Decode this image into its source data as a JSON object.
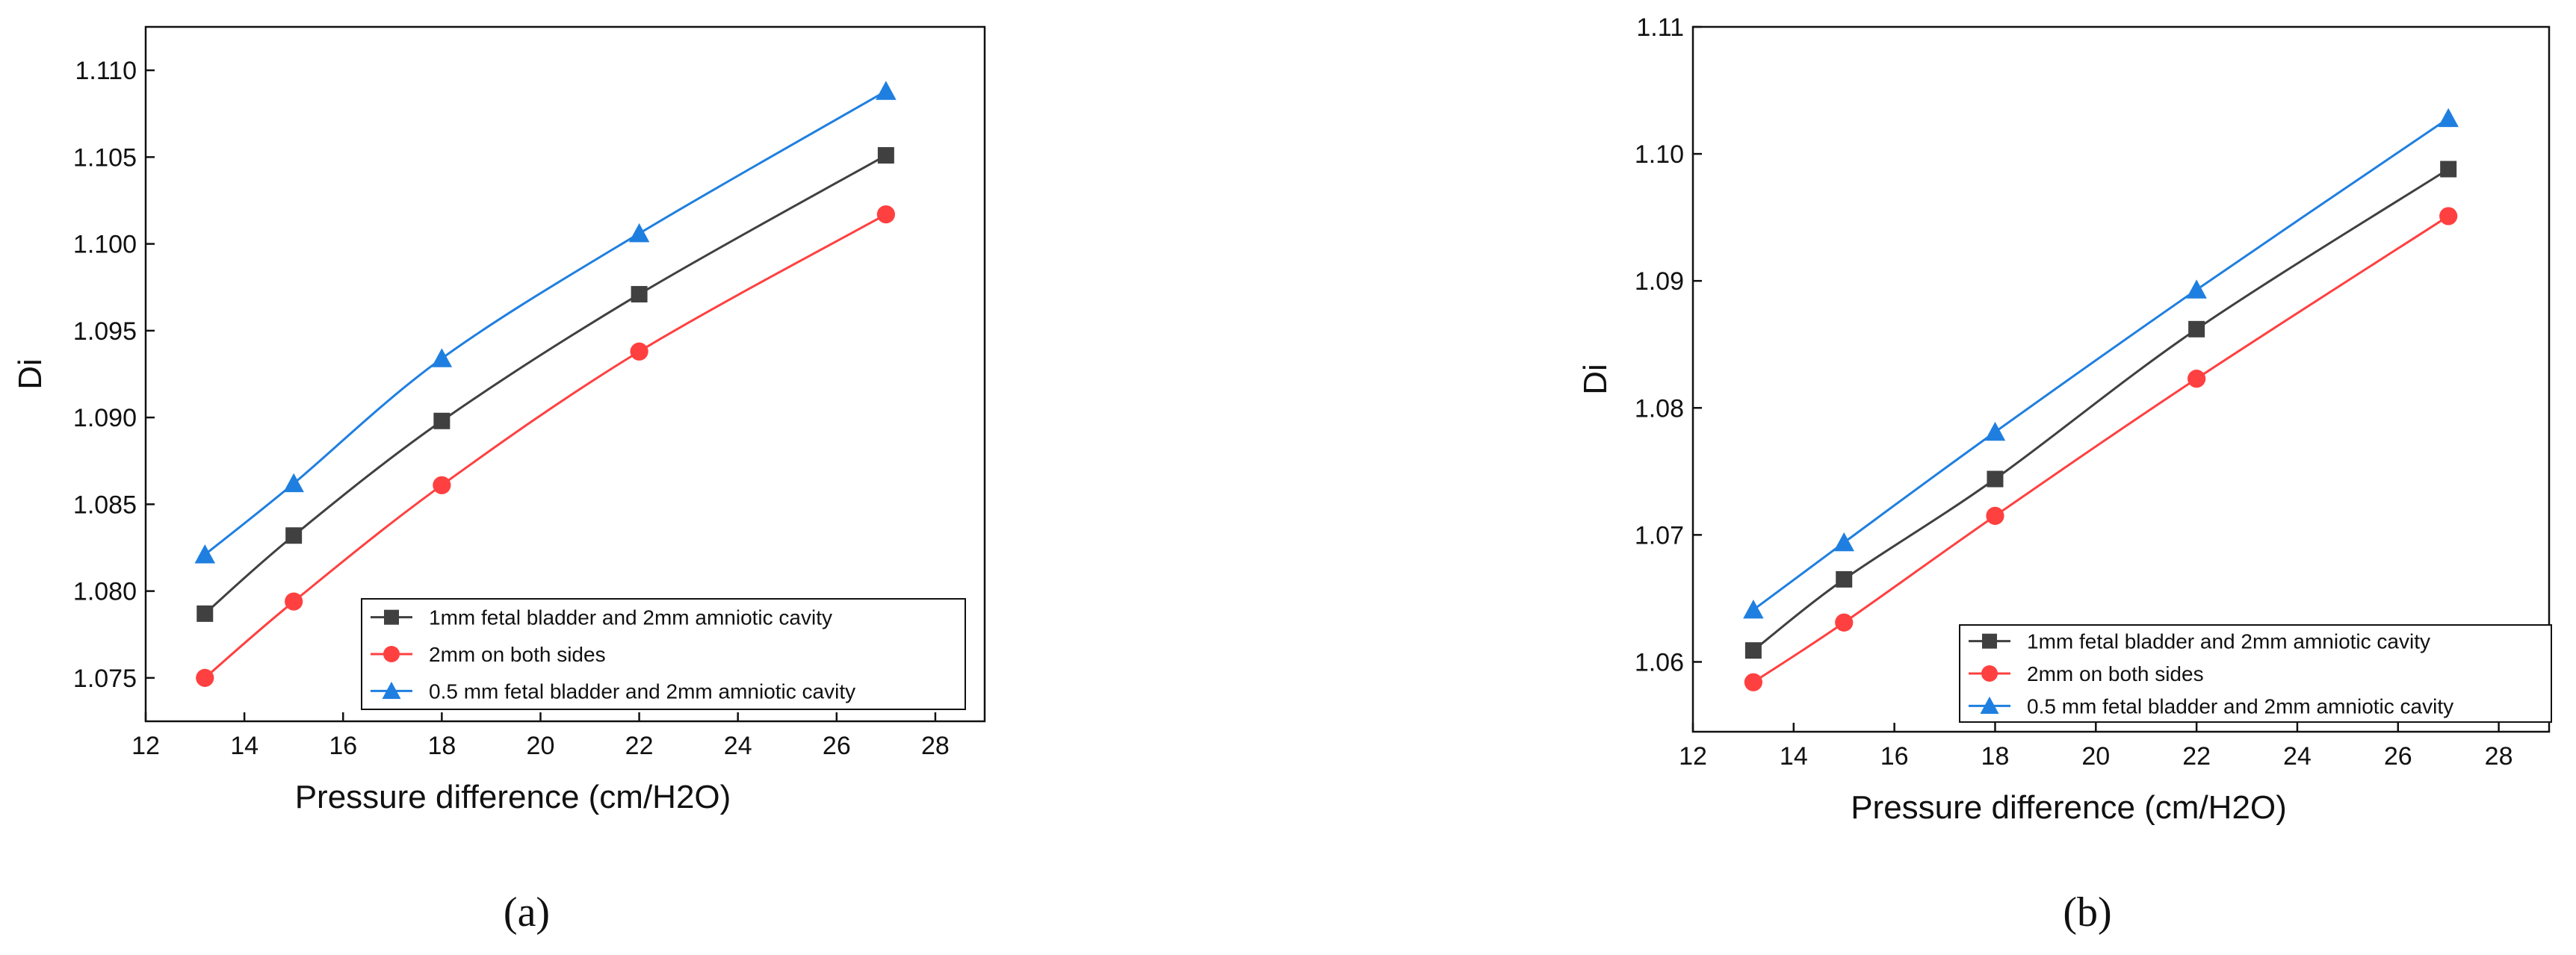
{
  "chart_data": [
    {
      "type": "line",
      "caption": "(a)",
      "xlabel": "Pressure difference (cm/H2O)",
      "ylabel": "Di",
      "xlim": [
        12,
        29
      ],
      "ylim": [
        1.0725,
        1.1125
      ],
      "xticks": [
        12,
        14,
        16,
        18,
        20,
        22,
        24,
        26,
        28
      ],
      "yticks": [
        "1.075",
        "1.080",
        "1.085",
        "1.090",
        "1.095",
        "1.100",
        "1.105",
        "1.110"
      ],
      "grid": false,
      "legend_position": "bottom-right",
      "x": [
        13.2,
        15,
        18,
        22,
        27
      ],
      "series": [
        {
          "name": "1mm fetal bladder and 2mm amniotic cavity",
          "marker": "square",
          "color": "#404040",
          "values": [
            1.0787,
            1.0832,
            1.0898,
            1.0971,
            1.1051
          ]
        },
        {
          "name": "2mm on both sides",
          "marker": "circle",
          "color": "#ff4040",
          "values": [
            1.075,
            1.0794,
            1.0861,
            1.0938,
            1.1017
          ]
        },
        {
          "name": "0.5 mm fetal bladder and 2mm amniotic cavity",
          "marker": "triangle",
          "color": "#1f7fe0",
          "values": [
            1.0821,
            1.0862,
            1.0934,
            1.1006,
            1.1088
          ]
        }
      ]
    },
    {
      "type": "line",
      "caption": "(b)",
      "xlabel": "Pressure difference (cm/H2O)",
      "ylabel": "Di",
      "xlim": [
        12,
        29
      ],
      "ylim": [
        1.0545,
        1.11
      ],
      "xticks": [
        12,
        14,
        16,
        18,
        20,
        22,
        24,
        26,
        28
      ],
      "yticks": [
        "1.06",
        "1.07",
        "1.08",
        "1.09",
        "1.10",
        "1.11"
      ],
      "grid": false,
      "legend_position": "bottom-right",
      "x": [
        13.2,
        15,
        18,
        22,
        27
      ],
      "series": [
        {
          "name": "1mm fetal bladder and 2mm amniotic cavity",
          "marker": "square",
          "color": "#404040",
          "values": [
            1.0609,
            1.0665,
            1.0744,
            1.0862,
            1.0988
          ]
        },
        {
          "name": "2mm on both sides",
          "marker": "circle",
          "color": "#ff4040",
          "values": [
            1.0584,
            1.0631,
            1.0715,
            1.0823,
            1.0951
          ]
        },
        {
          "name": "0.5 mm fetal bladder and 2mm amniotic cavity",
          "marker": "triangle",
          "color": "#1f7fe0",
          "values": [
            1.0641,
            1.0694,
            1.0781,
            1.0893,
            1.1028
          ]
        }
      ]
    }
  ]
}
